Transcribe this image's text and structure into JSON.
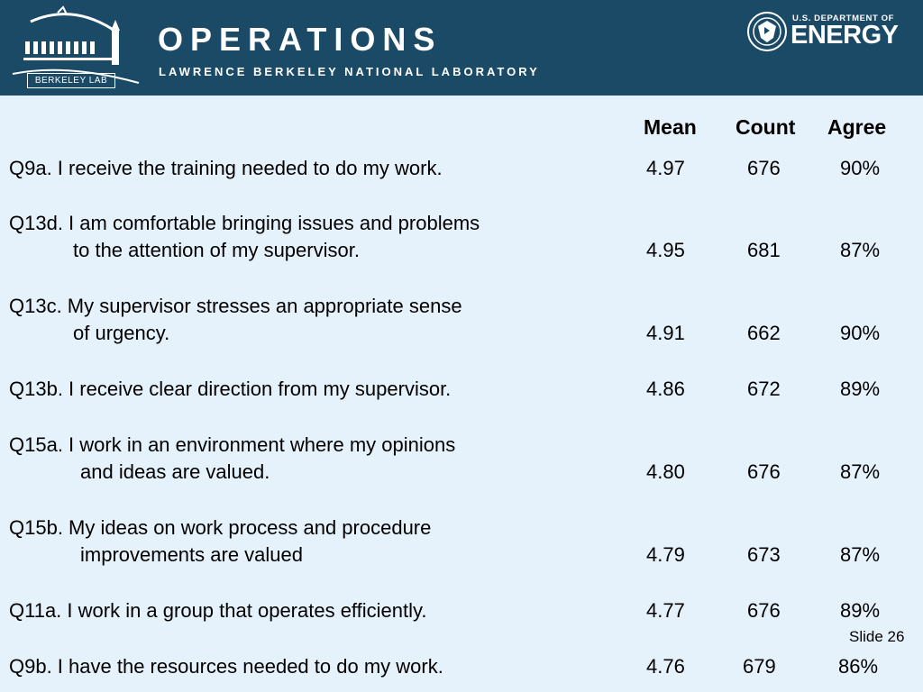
{
  "header": {
    "lab_logo_text": "BERKELEY LAB",
    "title": "OPERATIONS",
    "subtitle": "LAWRENCE BERKELEY NATIONAL LABORATORY",
    "doe_line1": "U.S. DEPARTMENT OF",
    "doe_line2": "ENERGY",
    "background_color": "#1b4a66"
  },
  "table": {
    "columns": [
      "Mean",
      "Count",
      "Agree"
    ],
    "rows": [
      {
        "line1": "Q9a. I receive the training needed to do my work.",
        "line2": "",
        "mean": "4.97",
        "count": "676",
        "agree": "90%"
      },
      {
        "line1": "Q13d. I am comfortable bringing issues and problems",
        "line2": "to the attention of my supervisor.",
        "mean": "4.95",
        "count": "681",
        "agree": "87%"
      },
      {
        "line1": "Q13c. My supervisor stresses an appropriate sense",
        "line2": "of urgency.",
        "mean": "4.91",
        "count": "662",
        "agree": "90%"
      },
      {
        "line1": "Q13b. I receive clear direction from my supervisor.",
        "line2": "",
        "mean": "4.86",
        "count": "672",
        "agree": "89%"
      },
      {
        "line1": "Q15a. I work in an environment where my opinions",
        "line2": "and ideas are valued.",
        "mean": "4.80",
        "count": "676",
        "agree": "87%"
      },
      {
        "line1": "Q15b. My ideas on work process and procedure",
        "line2": "improvements are valued",
        "mean": "4.79",
        "count": "673",
        "agree": "87%"
      },
      {
        "line1": "Q11a. I work in a group that operates efficiently.",
        "line2": "",
        "mean": "4.77",
        "count": "676",
        "agree": "89%"
      },
      {
        "line1": "Q9b. I have the resources needed to do my work.",
        "line2": "",
        "mean": "4.76",
        "count": "679",
        "agree": "86%"
      }
    ]
  },
  "footer": {
    "slide_label": "Slide 26"
  }
}
